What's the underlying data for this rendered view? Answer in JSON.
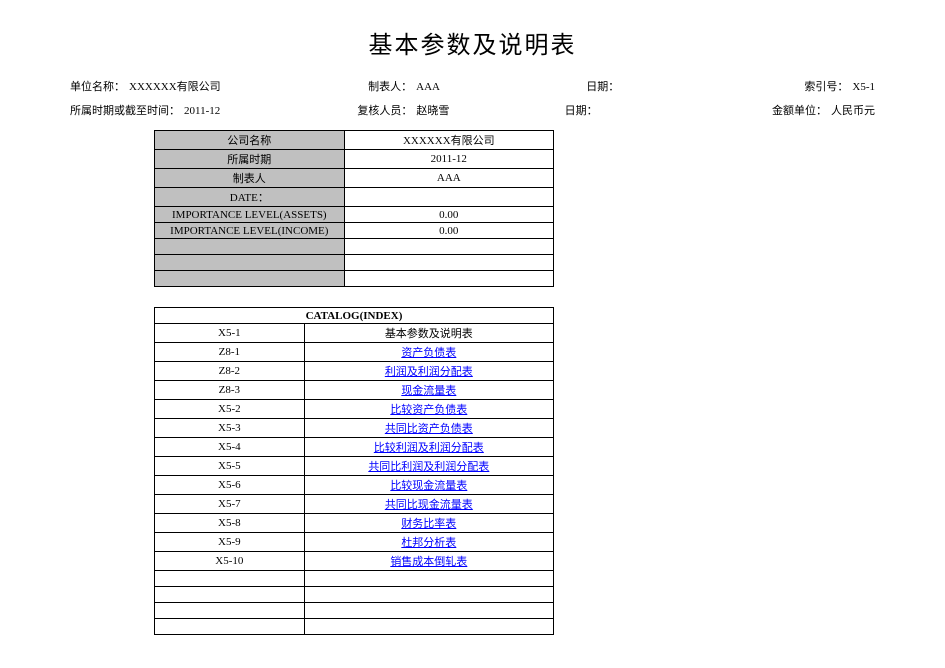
{
  "title": "基本参数及说明表",
  "header": {
    "row1": {
      "unit_label": "单位名称：",
      "unit_value": "XXXXXX有限公司",
      "preparer_label": "制表人：",
      "preparer_value": "AAA",
      "date1_label": "日期：",
      "date1_value": "",
      "index_label": "索引号：",
      "index_value": "X5-1"
    },
    "row2": {
      "period_label": "所属时期或截至时间：",
      "period_value": "2011-12",
      "reviewer_label": "复核人员：",
      "reviewer_value": "赵晓雪",
      "date2_label": "日期：",
      "date2_value": "",
      "currency_label": "金额单位：",
      "currency_value": "人民币元"
    }
  },
  "params": {
    "rows": [
      {
        "label": "公司名称",
        "value": "XXXXXX有限公司"
      },
      {
        "label": "所属时期",
        "value": "2011-12"
      },
      {
        "label": "制表人",
        "value": "AAA"
      },
      {
        "label": "DATE：",
        "value": ""
      },
      {
        "label": "IMPORTANCE LEVEL(ASSETS)",
        "value": "0.00"
      },
      {
        "label": "IMPORTANCE LEVEL(INCOME)",
        "value": "0.00"
      }
    ],
    "empty_rows": 3,
    "label_bg": "#c0c0c0",
    "value_bg": "#ffffff",
    "border_color": "#000000"
  },
  "catalog": {
    "header": "CATALOG(INDEX)",
    "rows": [
      {
        "code": "X5-1",
        "name": "基本参数及说明表",
        "link": false
      },
      {
        "code": "Z8-1",
        "name": "资产负债表",
        "link": true
      },
      {
        "code": "Z8-2",
        "name": "利润及利润分配表",
        "link": true
      },
      {
        "code": "Z8-3",
        "name": "现金流量表",
        "link": true
      },
      {
        "code": "X5-2",
        "name": "比较资产负债表",
        "link": true
      },
      {
        "code": "X5-3",
        "name": "共同比资产负债表",
        "link": true
      },
      {
        "code": "X5-4",
        "name": "比较利润及利润分配表",
        "link": true
      },
      {
        "code": "X5-5",
        "name": "共同比利润及利润分配表",
        "link": true
      },
      {
        "code": "X5-6",
        "name": "比较现金流量表",
        "link": true
      },
      {
        "code": "X5-7",
        "name": "共同比现金流量表",
        "link": true
      },
      {
        "code": "X5-8",
        "name": "财务比率表",
        "link": true
      },
      {
        "code": "X5-9",
        "name": "杜邦分析表",
        "link": true
      },
      {
        "code": "X5-10",
        "name": "销售成本倒轧表",
        "link": true
      }
    ],
    "empty_rows": 4,
    "link_color": "#0000ff",
    "border_color": "#000000"
  },
  "colors": {
    "background": "#ffffff",
    "text": "#000000",
    "link": "#0000ff",
    "shaded_cell": "#c0c0c0",
    "border": "#000000"
  },
  "typography": {
    "title_fontsize": 24,
    "body_fontsize": 11,
    "font_family": "SimSun"
  }
}
